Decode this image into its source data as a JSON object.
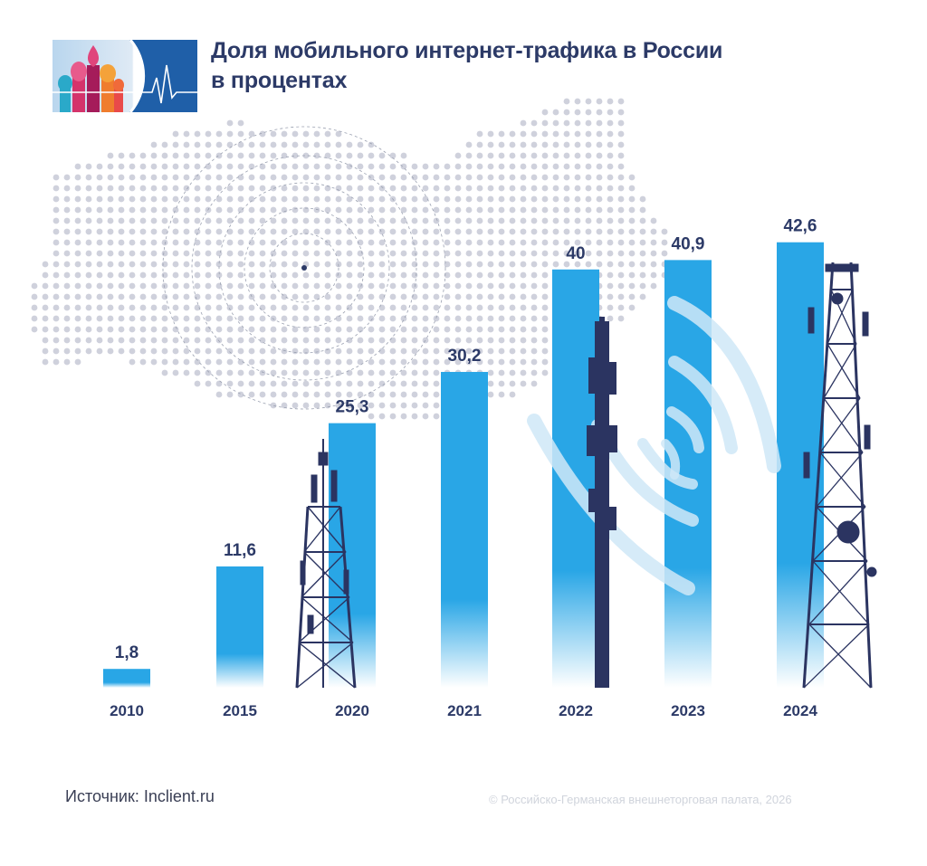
{
  "header": {
    "title_line1": "Доля мобильного интернет-трафика в России",
    "title_line2": "в процентах"
  },
  "colors": {
    "bar_top": "#29a6e6",
    "bar_bottom": "#ffffff",
    "text_dark": "#2c3a67",
    "map_dots": "#cfd1dc",
    "tower": "#2b3461",
    "logo_blue": "#1f6fb5"
  },
  "chart_data": {
    "type": "bar",
    "categories": [
      "2010",
      "2015",
      "2020",
      "2021",
      "2022",
      "2023",
      "2024"
    ],
    "values": [
      1.8,
      11.6,
      25.3,
      30.2,
      40,
      40.9,
      42.6
    ],
    "value_labels": [
      "1,8",
      "11,6",
      "25,3",
      "30,2",
      "40",
      "40,9",
      "42,6"
    ],
    "title": "Доля мобильного интернет-трафика в России",
    "subtitle": "в процентах",
    "ylim": [
      0,
      45
    ],
    "grid": false,
    "legend": "none"
  },
  "footer": {
    "source": "Источник: Inclient.ru",
    "copyright": "© Российско-Германская внешнеторговая палата, 2026"
  },
  "icons": {
    "logo": "cathedral-domes-logo",
    "map": "russia-dot-map",
    "signal": "radio-signal-rings",
    "towers": "cell-tower-icon",
    "wifi": "wifi-waves-icon"
  }
}
